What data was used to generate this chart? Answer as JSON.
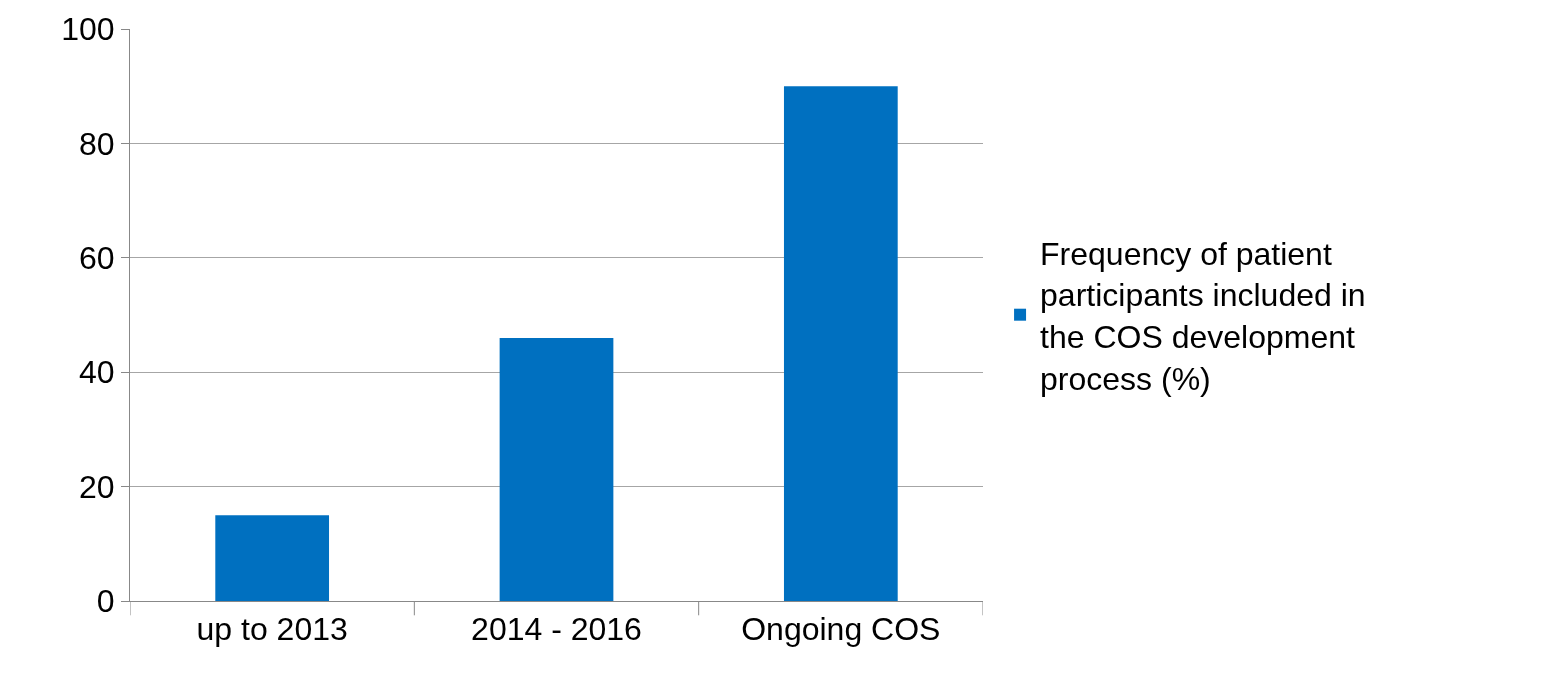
{
  "chart_data": {
    "type": "bar",
    "categories": [
      "up to 2013",
      "2014 - 2016",
      "Ongoing COS"
    ],
    "series": [
      {
        "name": "Frequency of patient participants included in the COS development process (%)",
        "color": "#0070c0",
        "values": [
          15,
          46,
          90
        ]
      }
    ],
    "ylim": [
      0,
      100
    ],
    "yticks": [
      0,
      20,
      40,
      60,
      80,
      100
    ],
    "grid": "y",
    "legend": "right"
  }
}
